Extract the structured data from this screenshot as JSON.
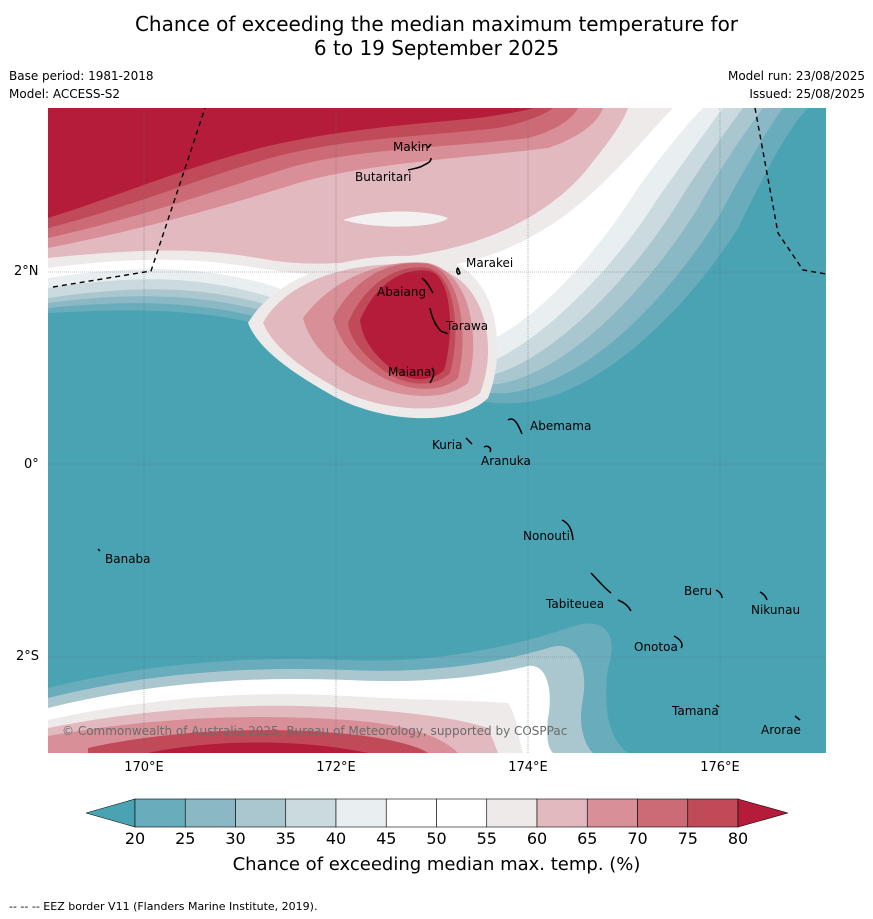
{
  "title_line1": "Chance of exceeding the median maximum temperature for",
  "title_line2": "6 to 19 September 2025",
  "meta": {
    "base_period": "Base period: 1981-2018",
    "model": "Model: ACCESS-S2",
    "model_run": "Model run: 23/08/2025",
    "issued": "Issued: 25/08/2025"
  },
  "axes": {
    "lat_labels": [
      "2°N",
      "0°",
      "2°S"
    ],
    "lon_labels": [
      "170°E",
      "172°E",
      "174°E",
      "176°E"
    ]
  },
  "places": [
    {
      "name": "Makin"
    },
    {
      "name": "Butaritari"
    },
    {
      "name": "Marakei"
    },
    {
      "name": "Abaiang"
    },
    {
      "name": "Tarawa"
    },
    {
      "name": "Maiana"
    },
    {
      "name": "Abemama"
    },
    {
      "name": "Kuria"
    },
    {
      "name": "Aranuka"
    },
    {
      "name": "Banaba"
    },
    {
      "name": "Nonouti"
    },
    {
      "name": "Beru"
    },
    {
      "name": "Tabiteuea"
    },
    {
      "name": "Nikunau"
    },
    {
      "name": "Onotoa"
    },
    {
      "name": "Tamana"
    },
    {
      "name": "Arorae"
    }
  ],
  "copyright": "© Commonwealth of Australia 2025, Bureau of Meteorology, supported by COSPPac",
  "colorbar": {
    "ticks": [
      "20",
      "25",
      "30",
      "35",
      "40",
      "45",
      "50",
      "55",
      "60",
      "65",
      "70",
      "75",
      "80"
    ],
    "label": "Chance of exceeding median max. temp. (%)",
    "colors": [
      "#4aa3b3",
      "#69acbc",
      "#8ab8c4",
      "#aac7cf",
      "#cbdade",
      "#e9eff1",
      "#ffffff",
      "#ffffff",
      "#eeeaea",
      "#e2b9bf",
      "#d98f98",
      "#cc6b76",
      "#c04a58",
      "#b41c39"
    ]
  },
  "footer": "--  --  -- EEZ border V11 (Flanders Marine Institute, 2019)."
}
